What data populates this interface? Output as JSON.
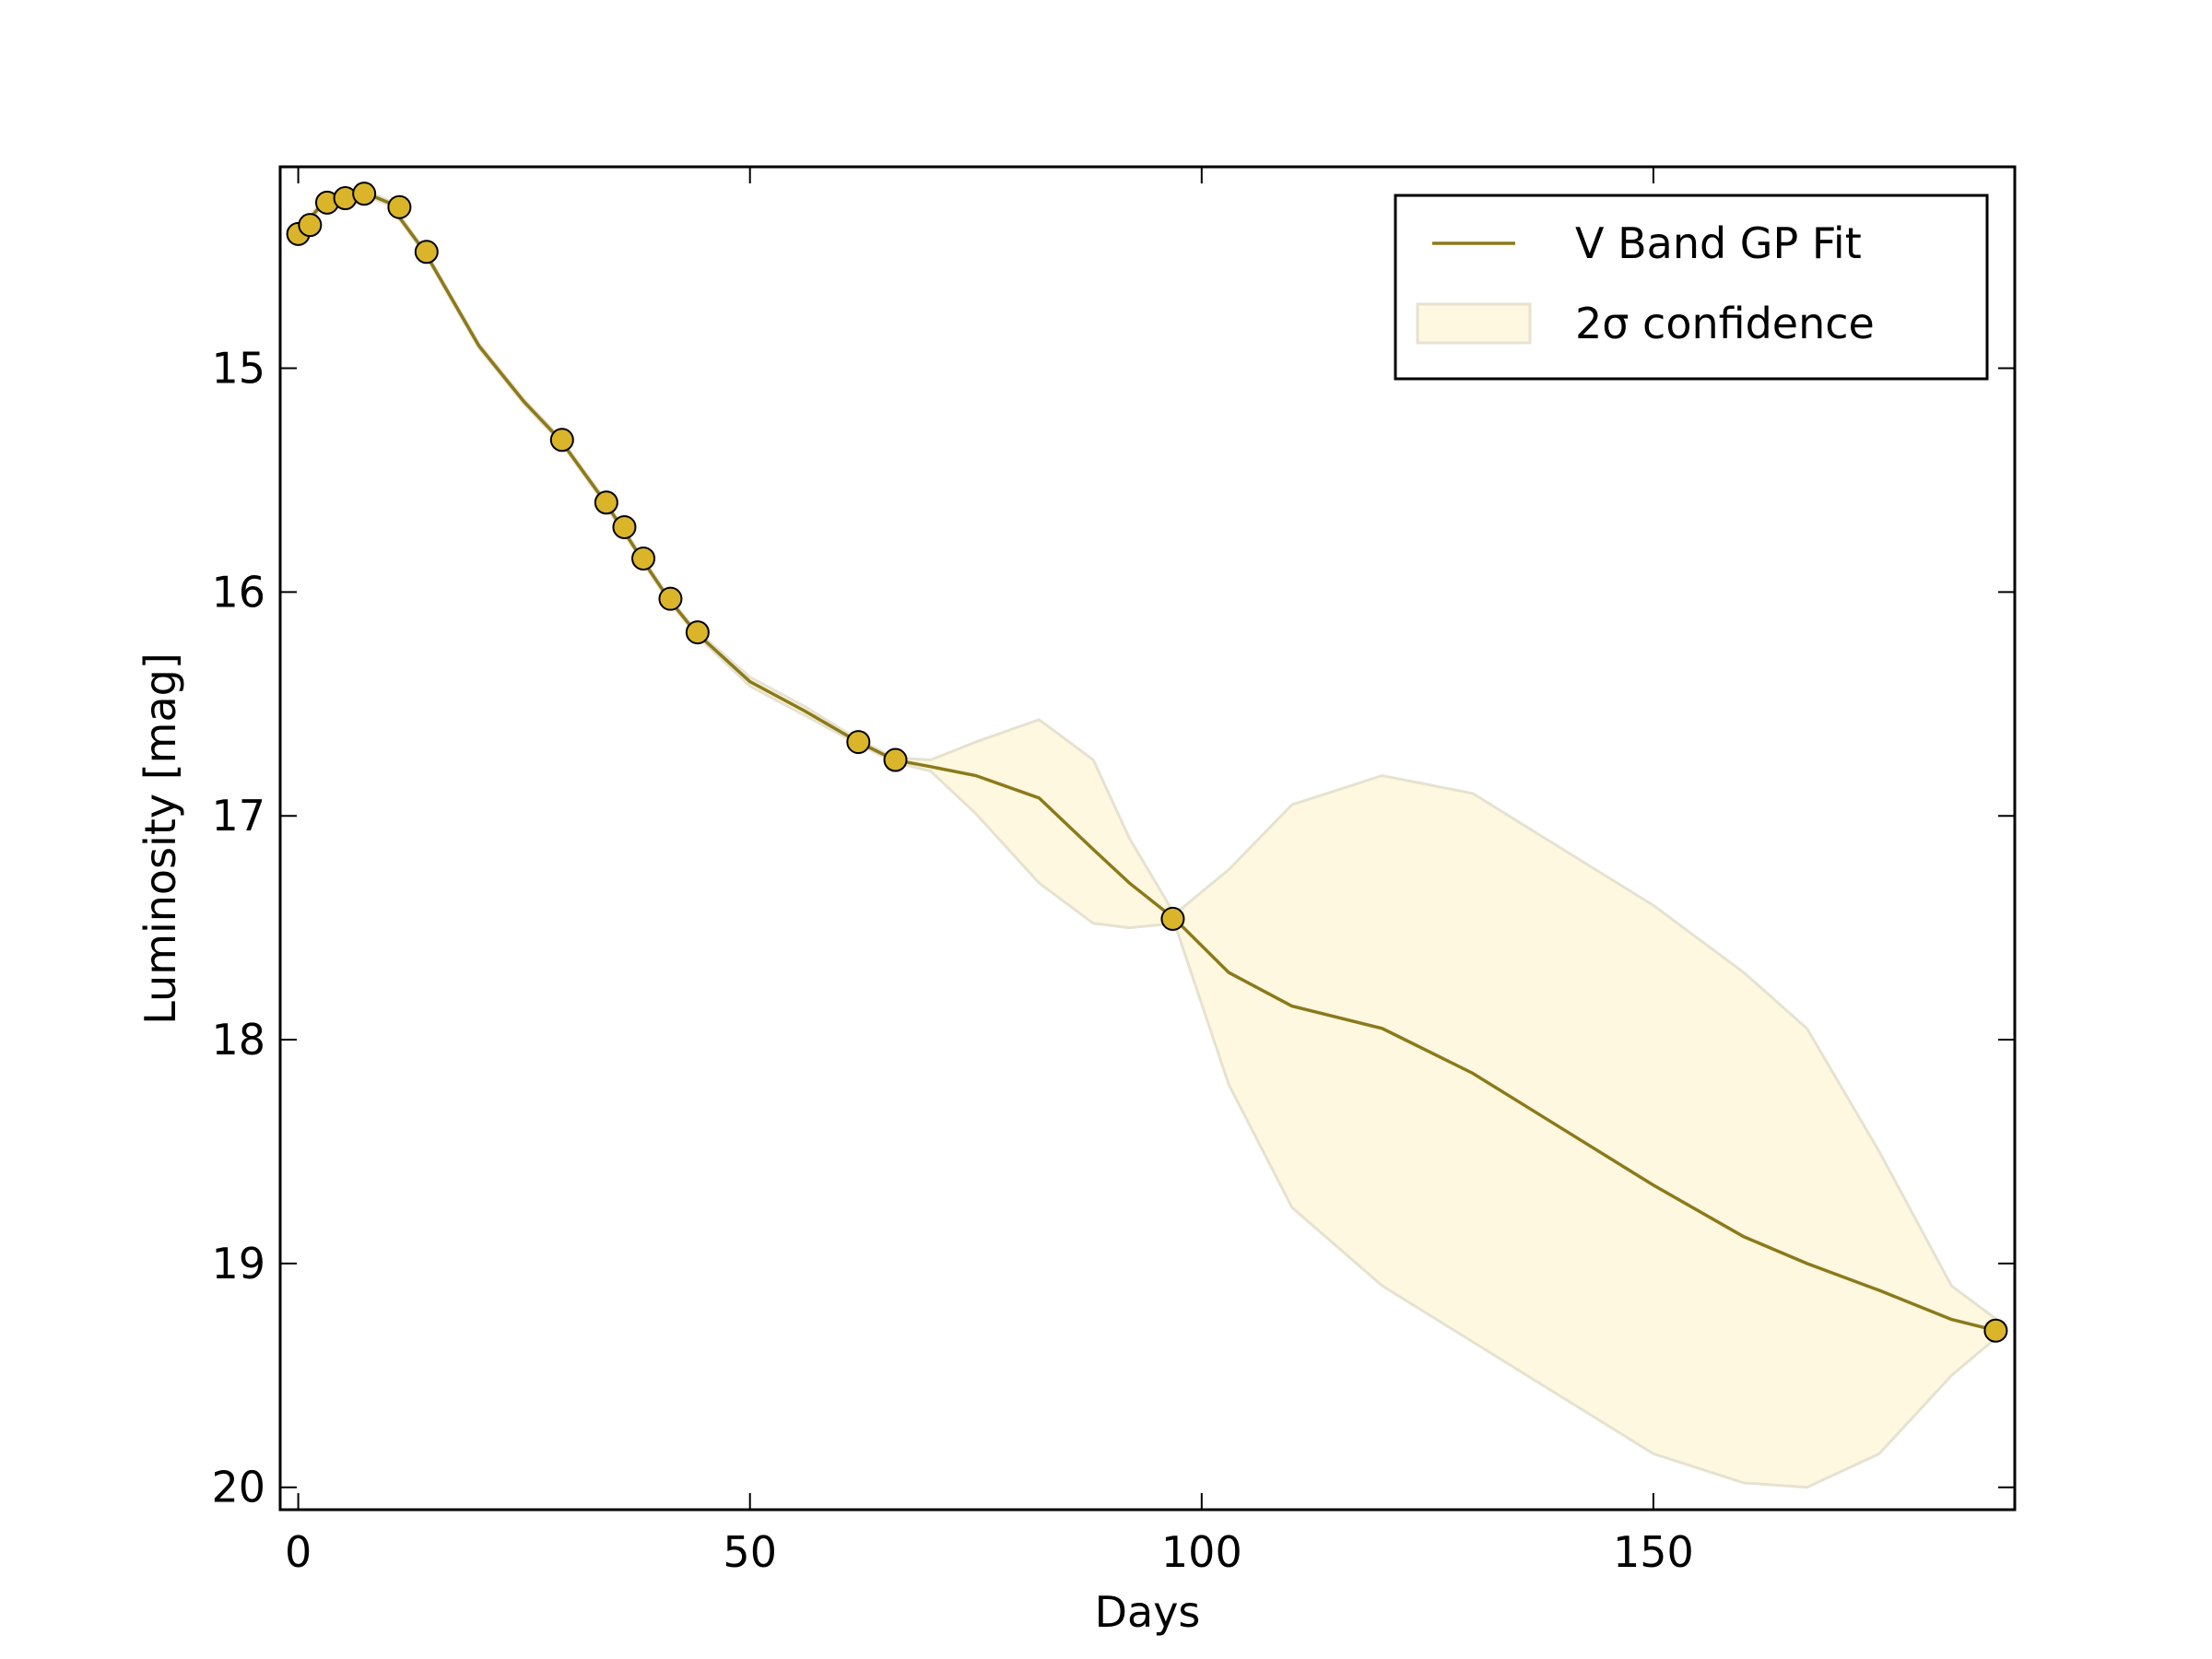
{
  "chart_data": {
    "type": "line",
    "xlabel": "Days",
    "ylabel": "Luminosity [mag]",
    "xlim": [
      -2,
      190
    ],
    "ylim": [
      14.1,
      20.1
    ],
    "y_inverted": true,
    "xticks": [
      0,
      50,
      100,
      150
    ],
    "yticks": [
      15,
      16,
      17,
      18,
      19,
      20
    ],
    "legend": "upper right",
    "series": [
      {
        "name": "V Band GP Fit",
        "color": "#8b7a1a",
        "x": [
          0,
          3,
          7,
          10,
          14,
          20,
          25,
          29,
          34,
          38,
          41,
          44,
          50,
          56,
          62,
          66,
          70,
          75,
          82,
          88,
          92,
          97,
          103,
          110,
          120,
          130,
          140,
          150,
          160,
          167,
          175,
          183,
          188
        ],
        "values": [
          14.39,
          14.25,
          14.21,
          14.26,
          14.48,
          14.9,
          15.15,
          15.32,
          15.6,
          15.85,
          16.03,
          16.18,
          16.4,
          16.53,
          16.67,
          16.75,
          16.78,
          16.82,
          16.92,
          17.15,
          17.3,
          17.46,
          17.7,
          17.85,
          17.95,
          18.15,
          18.4,
          18.65,
          18.88,
          19.0,
          19.12,
          19.25,
          19.3
        ]
      }
    ],
    "band": {
      "name": "2σ confidence",
      "color": "#fff8e0",
      "edge_color": "#e6e2d0",
      "x": [
        0,
        3,
        7,
        10,
        14,
        20,
        25,
        29,
        34,
        38,
        41,
        44,
        50,
        56,
        62,
        66,
        70,
        75,
        82,
        88,
        92,
        97,
        103,
        110,
        120,
        130,
        140,
        150,
        160,
        167,
        175,
        183,
        188
      ],
      "lower": [
        14.38,
        14.24,
        14.2,
        14.25,
        14.47,
        14.89,
        15.14,
        15.31,
        15.59,
        15.84,
        16.02,
        16.17,
        16.38,
        16.51,
        16.66,
        16.74,
        16.75,
        16.67,
        16.57,
        16.75,
        17.1,
        17.44,
        17.24,
        16.95,
        16.82,
        16.9,
        17.15,
        17.4,
        17.7,
        17.95,
        18.5,
        19.1,
        19.25
      ],
      "upper": [
        14.4,
        14.26,
        14.22,
        14.27,
        14.49,
        14.91,
        15.16,
        15.33,
        15.61,
        15.86,
        16.04,
        16.19,
        16.42,
        16.55,
        16.68,
        16.76,
        16.8,
        16.99,
        17.3,
        17.48,
        17.5,
        17.48,
        18.2,
        18.75,
        19.1,
        19.35,
        19.6,
        19.85,
        19.98,
        20.0,
        19.85,
        19.5,
        19.33
      ]
    },
    "points": {
      "color": "#dab52a",
      "x": [
        0,
        1.3,
        3.2,
        5.2,
        7.3,
        11.2,
        14.2,
        29.2,
        34.1,
        36.1,
        38.2,
        41.2,
        44.2,
        62.0,
        66.1,
        96.8,
        187.9
      ],
      "values": [
        14.4,
        14.36,
        14.26,
        14.24,
        14.22,
        14.28,
        14.48,
        15.32,
        15.6,
        15.71,
        15.85,
        16.03,
        16.18,
        16.67,
        16.75,
        17.46,
        19.3
      ]
    }
  }
}
